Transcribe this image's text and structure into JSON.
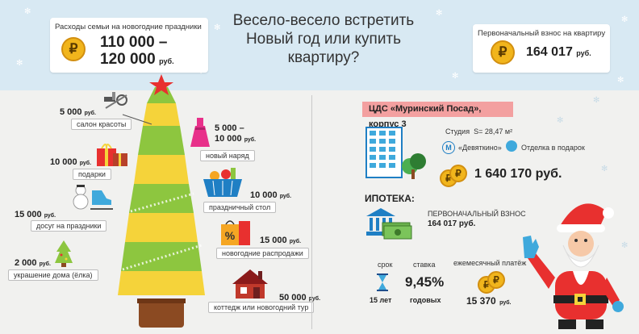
{
  "title": "Весело-весело встретить Новый год или купить квартиру?",
  "family_expenses": {
    "label": "Расходы семьи на новогодние праздники",
    "amount_line1": "110 000 –",
    "amount_line2": "120 000",
    "currency": "руб."
  },
  "down_payment_box": {
    "label": "Первоначальный взнос на квартиру",
    "amount": "164 017",
    "currency": "руб."
  },
  "coin_symbol": "₽",
  "tree_items": [
    {
      "amount": "5 000",
      "currency": "руб.",
      "label": "салон красоты",
      "icon": "beauty-tools-icon"
    },
    {
      "amount": "5 000 –",
      "amount2": "10 000",
      "currency": "руб.",
      "label": "новый наряд",
      "icon": "dress-icon"
    },
    {
      "amount": "10 000",
      "currency": "руб.",
      "label": "подарки",
      "icon": "gift-icon"
    },
    {
      "amount": "10 000",
      "currency": "руб.",
      "label": "праздничный стол",
      "icon": "food-basket-icon"
    },
    {
      "amount": "15 000",
      "currency": "руб.",
      "label": "досуг на праздники",
      "icon": "snowman-skates-icon"
    },
    {
      "amount": "15 000",
      "currency": "руб.",
      "label": "новогодние распродажи",
      "icon": "sale-bag-icon"
    },
    {
      "amount": "2 000",
      "currency": "руб.",
      "label": "украшение дома (ёлка)",
      "icon": "small-tree-icon"
    },
    {
      "amount": "50 000",
      "currency": "руб.",
      "label": "коттедж или новогодний тур",
      "icon": "cottage-icon"
    }
  ],
  "apartment": {
    "complex": "ЦДС «Муринский Посад», корпус 3",
    "type": "Студия",
    "area": "S= 28,47 м²",
    "metro": "«Девяткино»",
    "finish": "Отделка в подарок",
    "price": "1 640 170 руб."
  },
  "mortgage": {
    "heading": "ИПОТЕКА:",
    "down_label": "ПЕРВОНАЧАЛЬНЫЙ ВЗНОС",
    "down_value": "164 017 руб.",
    "term_label": "срок",
    "term_value": "15 лет",
    "rate_label": "ставка",
    "rate_value": "9,45%",
    "rate_unit": "годовых",
    "monthly_label": "ежемесячный платёж",
    "monthly_value": "15 370",
    "monthly_currency": "руб."
  },
  "colors": {
    "top_bg": "#d8e9f3",
    "bottom_bg": "#f1f1ef",
    "coin": "#f1b51c",
    "pink": "#f3a0a0",
    "tree_green": "#8dc63f",
    "tree_yellow": "#f5d33a",
    "star": "#e8302f"
  }
}
